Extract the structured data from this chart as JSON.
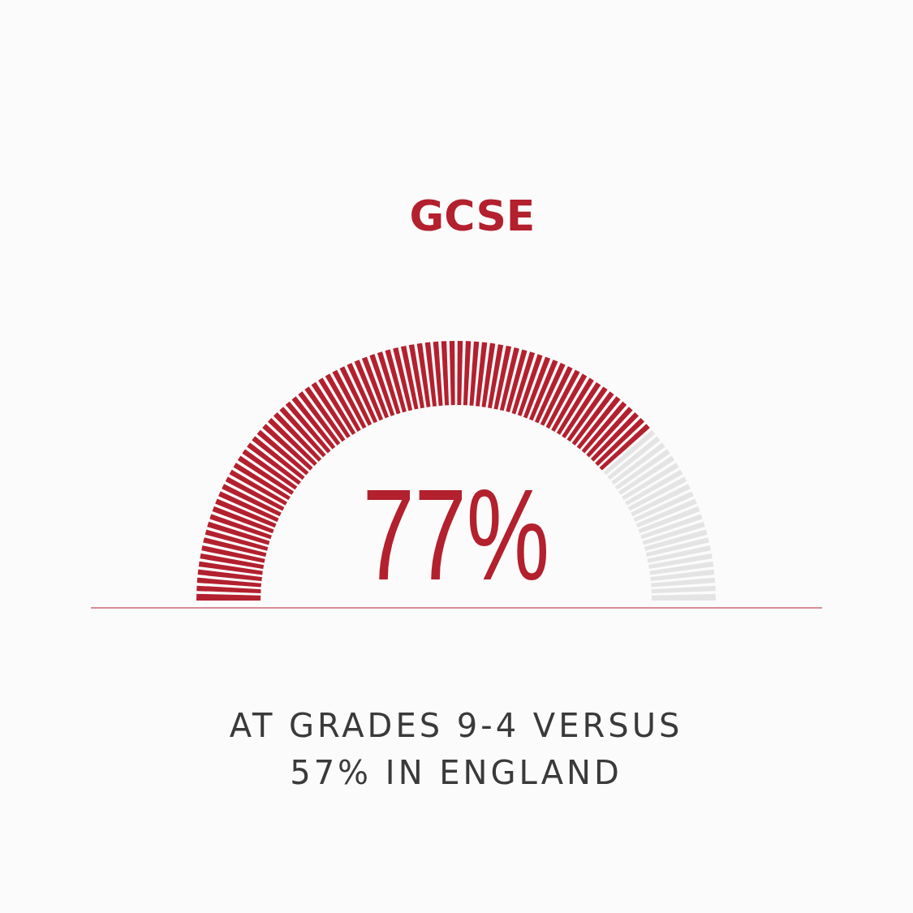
{
  "chart_data": {
    "type": "donut",
    "title": "GCSE",
    "categories": [
      null,
      null
    ],
    "values": [
      77,
      23
    ],
    "colors": [
      "#b3202e",
      "#e4e4e4"
    ],
    "value_labels": [
      "77%",
      null
    ],
    "annotations": [
      "AT GRADES 9-4 VERSUS 57% IN ENGLAND"
    ]
  }
}
